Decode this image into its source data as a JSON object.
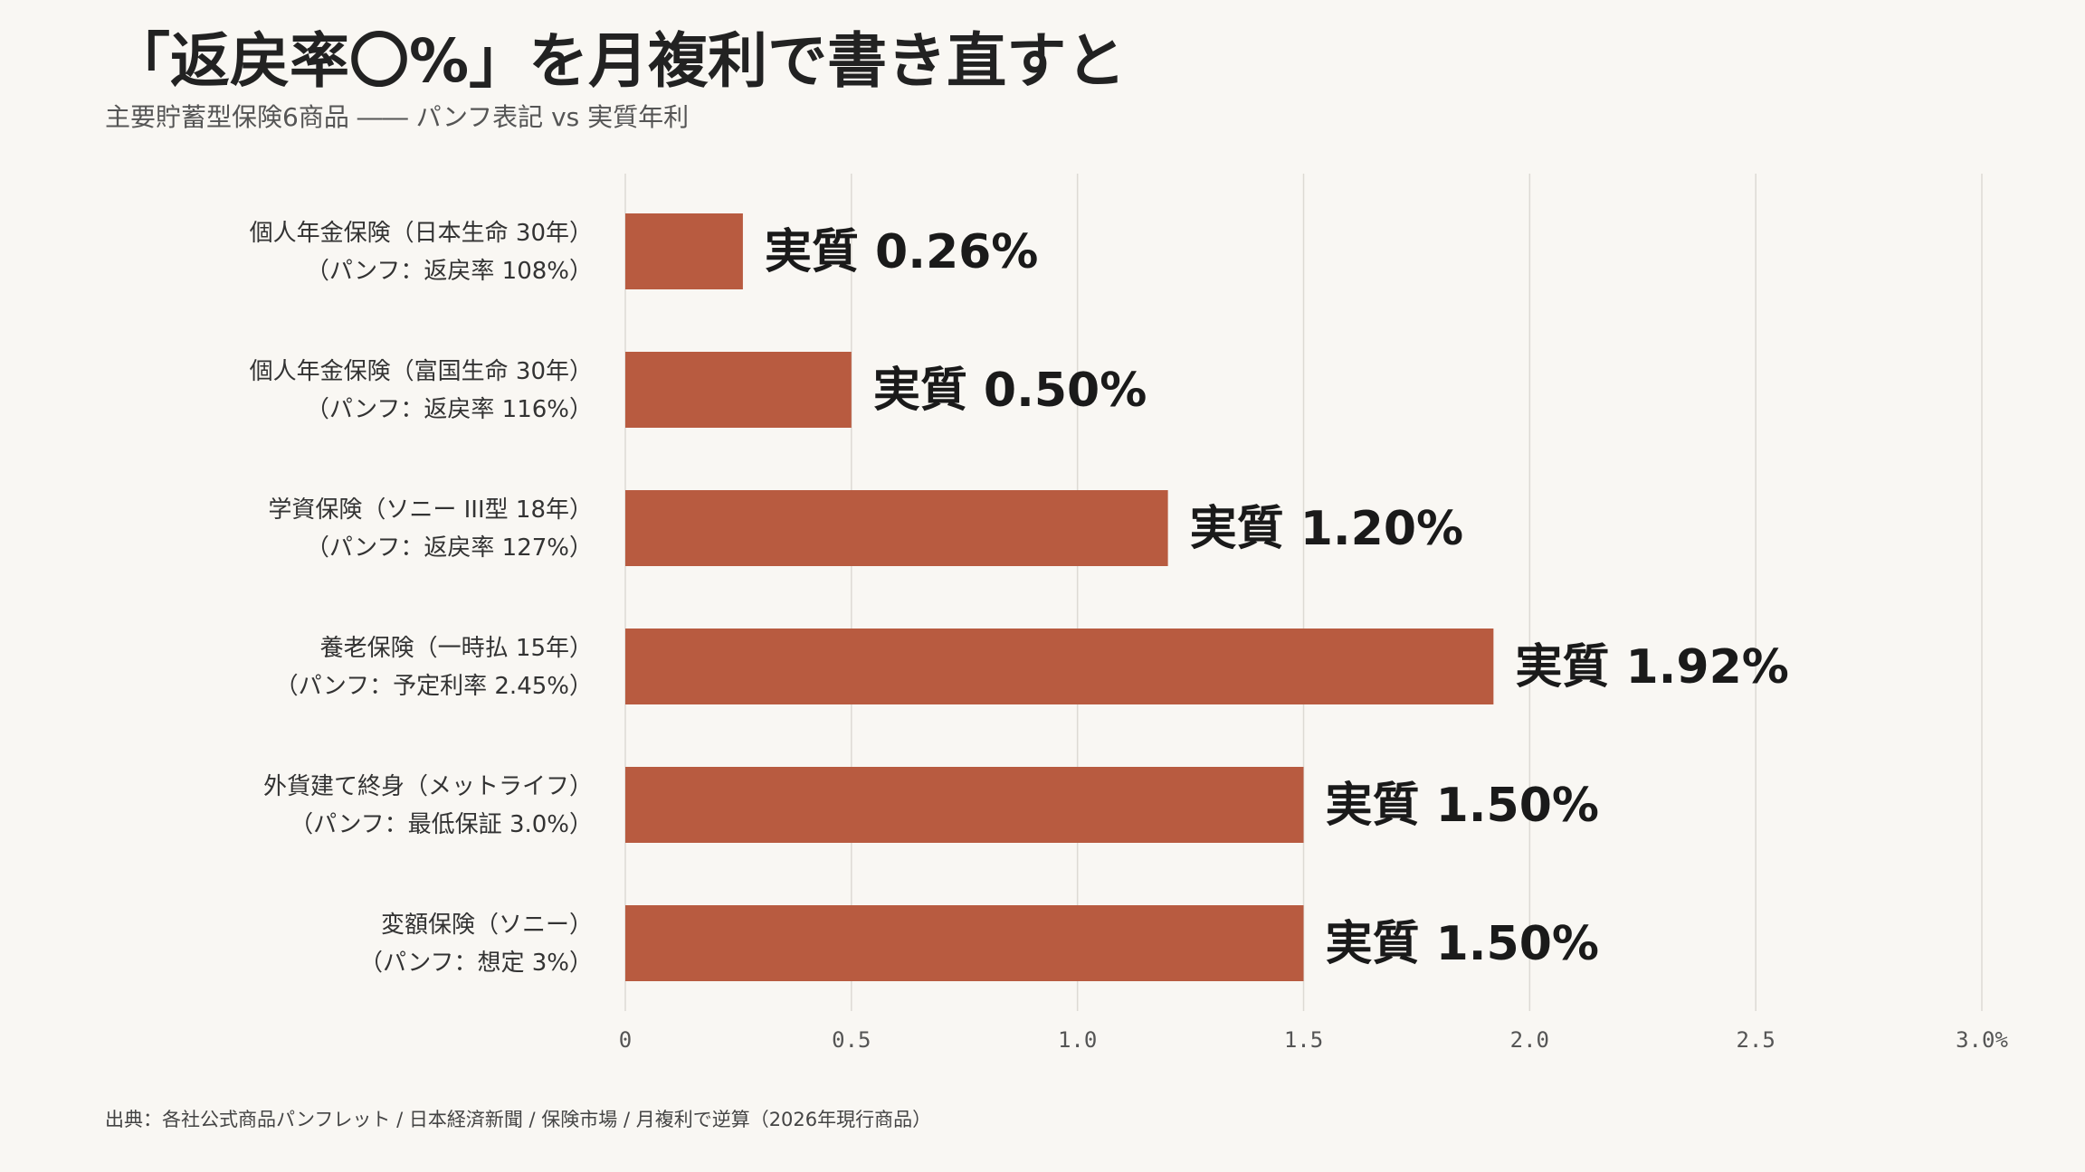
{
  "header": {
    "title": "「返戻率〇%」を月複利で書き直すと",
    "subtitle": "主要貯蓄型保険6商品 ―― パンフ表記 vs 実質年利"
  },
  "footer": {
    "source": "出典：各社公式商品パンフレット / 日本経済新聞 / 保険市場 / 月複利で逆算（2026年現行商品）"
  },
  "colors": {
    "bar": "#b85b40",
    "grid": "#dddad4",
    "background": "#f9f7f3"
  },
  "chart_data": {
    "type": "bar",
    "orientation": "horizontal",
    "categories": [
      [
        "個人年金保険（日本生命 30年）",
        "（パンフ：返戻率 108%）"
      ],
      [
        "個人年金保険（富国生命 30年）",
        "（パンフ：返戻率 116%）"
      ],
      [
        "学資保険（ソニー III型 18年）",
        "（パンフ：返戻率 127%）"
      ],
      [
        "養老保険（一時払 15年）",
        "（パンフ：予定利率 2.45%）"
      ],
      [
        "外貨建て終身（メットライフ）",
        "（パンフ：最低保証 3.0%）"
      ],
      [
        "変額保険（ソニー）",
        "（パンフ：想定 3%）"
      ]
    ],
    "values": [
      0.26,
      0.5,
      1.2,
      1.92,
      1.5,
      1.5
    ],
    "data_labels": [
      "実質 0.26%",
      "実質 0.50%",
      "実質 1.20%",
      "実質 1.92%",
      "実質 1.50%",
      "実質 1.50%"
    ],
    "xlim": [
      0,
      3.0
    ],
    "xticks": [
      0,
      0.5,
      1.0,
      1.5,
      2.0,
      2.5,
      3.0
    ],
    "xtick_labels": [
      "0",
      "0.5",
      "1.0",
      "1.5",
      "2.0",
      "2.5",
      "3.0%"
    ],
    "grid": true,
    "title": "",
    "xlabel": "",
    "ylabel": ""
  }
}
